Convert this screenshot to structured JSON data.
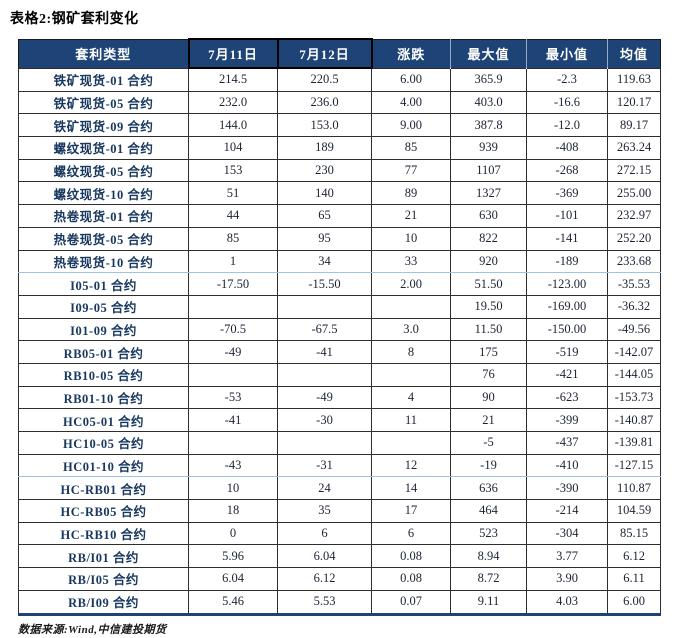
{
  "title": "表格2:钢矿套利变化",
  "table": {
    "headers": [
      "套利类型",
      "7月11日",
      "7月12日",
      "涨跌",
      "最大值",
      "最小值",
      "均值"
    ],
    "rows": [
      {
        "label": "铁矿现货-01 合约",
        "values": [
          "214.5",
          "220.5",
          "6.00",
          "365.9",
          "-2.3",
          "119.63"
        ]
      },
      {
        "label": "铁矿现货-05 合约",
        "values": [
          "232.0",
          "236.0",
          "4.00",
          "403.0",
          "-16.6",
          "120.17"
        ]
      },
      {
        "label": "铁矿现货-09 合约",
        "values": [
          "144.0",
          "153.0",
          "9.00",
          "387.8",
          "-12.0",
          "89.17"
        ]
      },
      {
        "label": "螺纹现货-01 合约",
        "values": [
          "104",
          "189",
          "85",
          "939",
          "-408",
          "263.24"
        ]
      },
      {
        "label": "螺纹现货-05 合约",
        "values": [
          "153",
          "230",
          "77",
          "1107",
          "-268",
          "272.15"
        ]
      },
      {
        "label": "螺纹现货-10 合约",
        "values": [
          "51",
          "140",
          "89",
          "1327",
          "-369",
          "255.00"
        ]
      },
      {
        "label": "热卷现货-01 合约",
        "values": [
          "44",
          "65",
          "21",
          "630",
          "-101",
          "232.97"
        ]
      },
      {
        "label": "热卷现货-05 合约",
        "values": [
          "85",
          "95",
          "10",
          "822",
          "-141",
          "252.20"
        ]
      },
      {
        "label": "热卷现货-10 合约",
        "values": [
          "1",
          "34",
          "33",
          "920",
          "-189",
          "233.68"
        ],
        "divider_after": true
      },
      {
        "label": "I05-01 合约",
        "values": [
          "-17.50",
          "-15.50",
          "2.00",
          "51.50",
          "-123.00",
          "-35.53"
        ]
      },
      {
        "label": "I09-05 合约",
        "values": [
          "",
          "",
          "",
          "19.50",
          "-169.00",
          "-36.32"
        ]
      },
      {
        "label": "I01-09 合约",
        "values": [
          "-70.5",
          "-67.5",
          "3.0",
          "11.50",
          "-150.00",
          "-49.56"
        ]
      },
      {
        "label": "RB05-01 合约",
        "values": [
          "-49",
          "-41",
          "8",
          "175",
          "-519",
          "-142.07"
        ]
      },
      {
        "label": "RB10-05 合约",
        "values": [
          "",
          "",
          "",
          "76",
          "-421",
          "-144.05"
        ]
      },
      {
        "label": "RB01-10 合约",
        "values": [
          "-53",
          "-49",
          "4",
          "90",
          "-623",
          "-153.73"
        ]
      },
      {
        "label": "HC05-01 合约",
        "values": [
          "-41",
          "-30",
          "11",
          "21",
          "-399",
          "-140.87"
        ]
      },
      {
        "label": "HC10-05 合约",
        "values": [
          "",
          "",
          "",
          "-5",
          "-437",
          "-139.81"
        ]
      },
      {
        "label": "HC01-10 合约",
        "values": [
          "-43",
          "-31",
          "12",
          "-19",
          "-410",
          "-127.15"
        ],
        "divider_after": true
      },
      {
        "label": "HC-RB01 合约",
        "values": [
          "10",
          "24",
          "14",
          "636",
          "-390",
          "110.87"
        ]
      },
      {
        "label": "HC-RB05 合约",
        "values": [
          "18",
          "35",
          "17",
          "464",
          "-214",
          "104.59"
        ]
      },
      {
        "label": "HC-RB10 合约",
        "values": [
          "0",
          "6",
          "6",
          "523",
          "-304",
          "85.15"
        ]
      },
      {
        "label": "RB/I01 合约",
        "values": [
          "5.96",
          "6.04",
          "0.08",
          "8.94",
          "3.77",
          "6.12"
        ]
      },
      {
        "label": "RB/I05 合约",
        "values": [
          "6.04",
          "6.12",
          "0.08",
          "8.72",
          "3.90",
          "6.11"
        ]
      },
      {
        "label": "RB/I09 合约",
        "values": [
          "5.46",
          "5.53",
          "0.07",
          "9.11",
          "4.03",
          "6.00"
        ]
      }
    ]
  },
  "footer": {
    "source": "数据来源:Wind,中信建投期货"
  },
  "colors": {
    "header_bg": "#1E4477",
    "header_text": "#FFFFFF",
    "label_text": "#17375E",
    "value_text": "#1C2333",
    "divider": "#9DC3E6",
    "table_bottom": "#1E4477",
    "highlight_border": "#000000"
  }
}
